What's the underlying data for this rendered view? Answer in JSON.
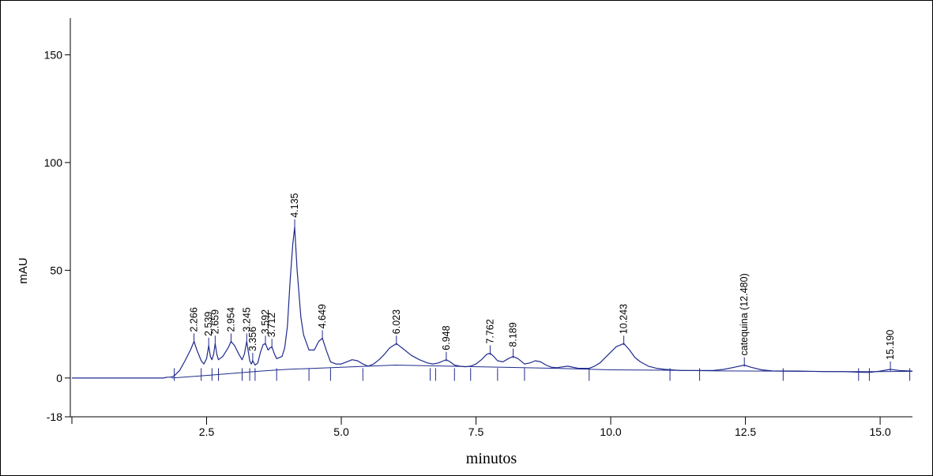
{
  "chart_data": {
    "type": "line",
    "title": "",
    "xlabel": "minutos",
    "ylabel": "mAU",
    "xlim": [
      0,
      15.6
    ],
    "ylim": [
      -18,
      167
    ],
    "x_ticks": [
      {
        "value": 2.5,
        "label": "2.5"
      },
      {
        "value": 5.0,
        "label": "5.0"
      },
      {
        "value": 7.5,
        "label": "7.5"
      },
      {
        "value": 10.0,
        "label": "10.0"
      },
      {
        "value": 12.5,
        "label": "12.5"
      },
      {
        "value": 15.0,
        "label": "15.0"
      }
    ],
    "y_ticks": [
      {
        "value": -18,
        "label": "-18"
      },
      {
        "value": 0,
        "label": "0"
      },
      {
        "value": 50,
        "label": "50"
      },
      {
        "value": 100,
        "label": "100"
      },
      {
        "value": 150,
        "label": "150"
      }
    ],
    "line_color": "#1f2a8c",
    "grid": false,
    "legend": "none",
    "trace": [
      [
        0.0,
        0
      ],
      [
        1.7,
        0
      ],
      [
        1.75,
        0.3
      ],
      [
        1.8,
        0.4
      ],
      [
        1.85,
        0.5
      ],
      [
        1.9,
        1.0
      ],
      [
        2.0,
        3.5
      ],
      [
        2.1,
        8
      ],
      [
        2.2,
        13
      ],
      [
        2.266,
        17
      ],
      [
        2.32,
        13
      ],
      [
        2.4,
        8
      ],
      [
        2.45,
        6.5
      ],
      [
        2.5,
        9
      ],
      [
        2.539,
        15
      ],
      [
        2.57,
        10
      ],
      [
        2.6,
        8.5
      ],
      [
        2.63,
        11
      ],
      [
        2.659,
        16
      ],
      [
        2.69,
        11
      ],
      [
        2.72,
        8.5
      ],
      [
        2.8,
        10
      ],
      [
        2.9,
        14
      ],
      [
        2.954,
        17
      ],
      [
        3.02,
        15
      ],
      [
        3.1,
        11
      ],
      [
        3.16,
        8.5
      ],
      [
        3.2,
        11
      ],
      [
        3.245,
        17
      ],
      [
        3.3,
        8
      ],
      [
        3.33,
        6.5
      ],
      [
        3.356,
        8
      ],
      [
        3.4,
        6
      ],
      [
        3.45,
        7
      ],
      [
        3.5,
        12
      ],
      [
        3.55,
        15.5
      ],
      [
        3.592,
        16
      ],
      [
        3.64,
        13
      ],
      [
        3.68,
        14
      ],
      [
        3.712,
        14.5
      ],
      [
        3.76,
        11
      ],
      [
        3.8,
        9
      ],
      [
        3.9,
        10
      ],
      [
        3.95,
        14
      ],
      [
        4.0,
        24
      ],
      [
        4.05,
        45
      ],
      [
        4.1,
        62
      ],
      [
        4.135,
        70
      ],
      [
        4.18,
        50
      ],
      [
        4.25,
        28
      ],
      [
        4.3,
        20
      ],
      [
        4.4,
        13
      ],
      [
        4.5,
        13
      ],
      [
        4.58,
        17
      ],
      [
        4.649,
        18.5
      ],
      [
        4.72,
        13
      ],
      [
        4.8,
        7.5
      ],
      [
        4.9,
        6.5
      ],
      [
        5.0,
        6.5
      ],
      [
        5.1,
        7.5
      ],
      [
        5.2,
        8.5
      ],
      [
        5.3,
        8
      ],
      [
        5.4,
        6.5
      ],
      [
        5.5,
        5.5
      ],
      [
        5.6,
        6.5
      ],
      [
        5.7,
        8.5
      ],
      [
        5.8,
        11
      ],
      [
        5.9,
        14
      ],
      [
        6.023,
        16
      ],
      [
        6.15,
        13.5
      ],
      [
        6.3,
        10.5
      ],
      [
        6.45,
        8.5
      ],
      [
        6.6,
        7
      ],
      [
        6.7,
        6.5
      ],
      [
        6.8,
        7
      ],
      [
        6.9,
        8
      ],
      [
        6.948,
        8.5
      ],
      [
        7.02,
        7.5
      ],
      [
        7.1,
        6
      ],
      [
        7.2,
        5.5
      ],
      [
        7.3,
        5.2
      ],
      [
        7.4,
        5.5
      ],
      [
        7.5,
        6.5
      ],
      [
        7.6,
        8.5
      ],
      [
        7.7,
        11
      ],
      [
        7.762,
        11.5
      ],
      [
        7.83,
        10
      ],
      [
        7.9,
        8
      ],
      [
        8.0,
        7.5
      ],
      [
        8.1,
        9
      ],
      [
        8.189,
        10
      ],
      [
        8.28,
        9
      ],
      [
        8.4,
        6.5
      ],
      [
        8.5,
        7
      ],
      [
        8.6,
        8
      ],
      [
        8.7,
        7.5
      ],
      [
        8.8,
        6
      ],
      [
        8.9,
        5
      ],
      [
        9.0,
        4.8
      ],
      [
        9.2,
        5.5
      ],
      [
        9.4,
        4.5
      ],
      [
        9.6,
        4.5
      ],
      [
        9.7,
        5.5
      ],
      [
        9.8,
        7
      ],
      [
        9.9,
        9.5
      ],
      [
        10.0,
        12
      ],
      [
        10.1,
        14.5
      ],
      [
        10.243,
        16
      ],
      [
        10.35,
        13
      ],
      [
        10.45,
        9.5
      ],
      [
        10.55,
        7.5
      ],
      [
        10.7,
        5.5
      ],
      [
        10.85,
        4.5
      ],
      [
        11.0,
        4
      ],
      [
        11.3,
        3.5
      ],
      [
        11.6,
        3.5
      ],
      [
        11.9,
        3.5
      ],
      [
        12.1,
        4
      ],
      [
        12.3,
        5
      ],
      [
        12.48,
        6
      ],
      [
        12.6,
        5
      ],
      [
        12.8,
        3.8
      ],
      [
        13.0,
        3.3
      ],
      [
        13.5,
        3.2
      ],
      [
        14.0,
        3
      ],
      [
        14.3,
        3
      ],
      [
        14.6,
        2.7
      ],
      [
        14.8,
        2.6
      ],
      [
        15.0,
        3.2
      ],
      [
        15.19,
        4
      ],
      [
        15.35,
        3.5
      ],
      [
        15.6,
        3.2
      ]
    ],
    "baseline": [
      [
        1.85,
        0
      ],
      [
        2.5,
        1.2
      ],
      [
        3.0,
        2.2
      ],
      [
        3.5,
        3.2
      ],
      [
        4.0,
        4.0
      ],
      [
        5.0,
        5.0
      ],
      [
        6.0,
        6.0
      ],
      [
        7.0,
        5.5
      ],
      [
        8.0,
        5.0
      ],
      [
        9.0,
        4.5
      ],
      [
        10.0,
        3.8
      ],
      [
        11.0,
        3.6
      ],
      [
        12.0,
        3.3
      ],
      [
        13.0,
        3.2
      ],
      [
        14.0,
        3.0
      ],
      [
        15.0,
        3.0
      ],
      [
        15.6,
        3.1
      ]
    ],
    "peaks": [
      {
        "rt": 2.266,
        "label": "2.266",
        "height": 17
      },
      {
        "rt": 2.539,
        "label": "2.539",
        "height": 15
      },
      {
        "rt": 2.659,
        "label": "2.659",
        "height": 16
      },
      {
        "rt": 2.954,
        "label": "2.954",
        "height": 17
      },
      {
        "rt": 3.245,
        "label": "3.245",
        "height": 17
      },
      {
        "rt": 3.356,
        "label": "3.356",
        "height": 8
      },
      {
        "rt": 3.592,
        "label": "3.592",
        "height": 16
      },
      {
        "rt": 3.712,
        "label": "3.712",
        "height": 14.5
      },
      {
        "rt": 4.135,
        "label": "4.135",
        "height": 70
      },
      {
        "rt": 4.649,
        "label": "4.649",
        "height": 18.5
      },
      {
        "rt": 6.023,
        "label": "6.023",
        "height": 16
      },
      {
        "rt": 6.948,
        "label": "6.948",
        "height": 8.5
      },
      {
        "rt": 7.762,
        "label": "7.762",
        "height": 11.5
      },
      {
        "rt": 8.189,
        "label": "8.189",
        "height": 10
      },
      {
        "rt": 10.243,
        "label": "10.243",
        "height": 16
      },
      {
        "rt": 12.48,
        "label": "catequina (12.480)",
        "height": 6
      },
      {
        "rt": 15.19,
        "label": "15.190",
        "height": 4
      }
    ],
    "integration_marks": [
      1.9,
      2.4,
      2.6,
      2.72,
      3.16,
      3.3,
      3.4,
      3.8,
      4.4,
      4.8,
      5.4,
      6.65,
      6.75,
      7.1,
      7.4,
      7.9,
      8.4,
      9.6,
      11.1,
      11.65,
      13.2,
      14.6,
      14.8,
      15.55
    ]
  }
}
